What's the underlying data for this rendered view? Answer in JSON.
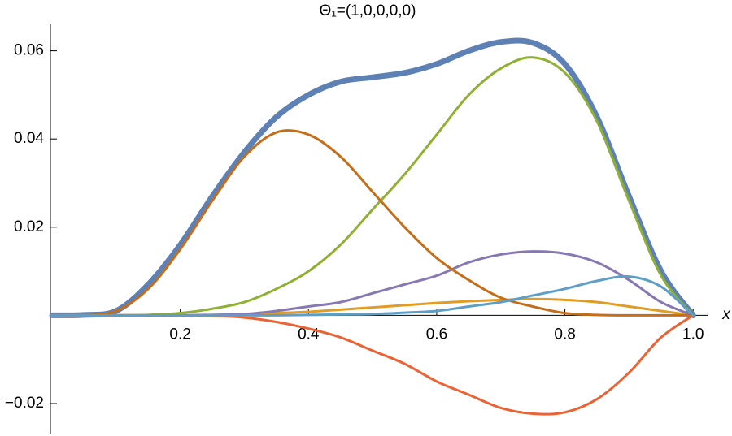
{
  "chart_data": {
    "type": "line",
    "title": "Θ₁=(1,0,0,0,0)",
    "x_label": "x",
    "x": [
      0,
      0.05,
      0.1,
      0.15,
      0.2,
      0.25,
      0.3,
      0.35,
      0.4,
      0.45,
      0.5,
      0.55,
      0.6,
      0.65,
      0.7,
      0.75,
      0.8,
      0.85,
      0.9,
      0.95,
      1.0
    ],
    "series": [
      {
        "color": "#5E81B5",
        "line_width": 7,
        "values": [
          0,
          0.0001,
          0.001,
          0.007,
          0.016,
          0.027,
          0.037,
          0.045,
          0.05,
          0.053,
          0.054,
          0.055,
          0.057,
          0.06,
          0.062,
          0.0618,
          0.057,
          0.045,
          0.027,
          0.01,
          0
        ]
      },
      {
        "color": "#E19C24",
        "line_width": 3,
        "values": [
          0,
          0,
          0,
          0,
          0,
          0.0001,
          0.0002,
          0.0005,
          0.0008,
          0.0013,
          0.0018,
          0.0023,
          0.0028,
          0.0032,
          0.0035,
          0.0037,
          0.0035,
          0.003,
          0.002,
          0.001,
          0
        ]
      },
      {
        "color": "#8FB032",
        "line_width": 3,
        "values": [
          0,
          0,
          0,
          0.0001,
          0.0005,
          0.0015,
          0.003,
          0.006,
          0.01,
          0.016,
          0.024,
          0.032,
          0.041,
          0.05,
          0.056,
          0.0585,
          0.055,
          0.044,
          0.026,
          0.009,
          0
        ]
      },
      {
        "color": "#EB6235",
        "line_width": 3,
        "values": [
          0,
          0,
          0,
          0,
          0,
          -0.0001,
          -0.0005,
          -0.0015,
          -0.003,
          -0.005,
          -0.008,
          -0.011,
          -0.015,
          -0.018,
          -0.021,
          -0.0223,
          -0.022,
          -0.019,
          -0.013,
          -0.005,
          0
        ]
      },
      {
        "color": "#8778B3",
        "line_width": 3,
        "values": [
          0,
          0,
          0,
          0,
          0,
          0.0001,
          0.0003,
          0.001,
          0.002,
          0.003,
          0.005,
          0.007,
          0.009,
          0.012,
          0.0138,
          0.0145,
          0.014,
          0.012,
          0.008,
          0.003,
          0
        ]
      },
      {
        "color": "#C56E1A",
        "line_width": 3,
        "values": [
          0,
          0,
          0.001,
          0.006,
          0.015,
          0.026,
          0.036,
          0.0415,
          0.041,
          0.036,
          0.028,
          0.02,
          0.013,
          0.008,
          0.004,
          0.002,
          0.0005,
          0.0001,
          0,
          0,
          0
        ]
      },
      {
        "color": "#5D9EC7",
        "line_width": 3,
        "values": [
          0,
          0,
          0,
          0,
          0,
          0,
          0,
          0,
          0.0001,
          0.0002,
          0.0003,
          0.0006,
          0.001,
          0.002,
          0.003,
          0.0045,
          0.006,
          0.0078,
          0.0088,
          0.0065,
          0
        ]
      }
    ],
    "xlim": [
      0,
      1.02
    ],
    "ylim": [
      -0.027,
      0.066
    ],
    "xticks": [
      0.2,
      0.4,
      0.6,
      0.8,
      {
        "value": 1,
        "label": "1.0"
      }
    ],
    "yticks": [
      {
        "value": -0.02,
        "label": "−0.02"
      },
      0.02,
      0.04,
      0.06
    ]
  }
}
